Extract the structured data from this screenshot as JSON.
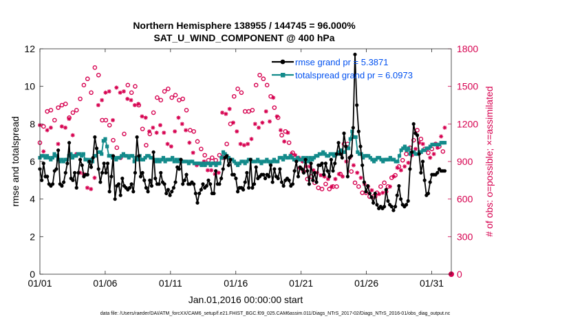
{
  "chart_data": {
    "type": "line",
    "title": "Northern Hemisphere 138955 / 144745 = 96.000%",
    "subtitle": "SAT_U_WIND_COMPONENT @ 400 hPa",
    "xlabel": "Jan.01,2016 00:00:00 start",
    "ylabel": "rmse and totalspread",
    "ylabel_right": "# of obs: o=possible; ×=assimilated",
    "xlim": [
      0,
      31.5
    ],
    "ylim": [
      0,
      12
    ],
    "ylim_right": [
      0,
      1800
    ],
    "x_ticks": [
      {
        "value": 0,
        "label": "01/01"
      },
      {
        "value": 5,
        "label": "01/06"
      },
      {
        "value": 10,
        "label": "01/11"
      },
      {
        "value": 15,
        "label": "01/16"
      },
      {
        "value": 20,
        "label": "01/21"
      },
      {
        "value": 25,
        "label": "01/26"
      },
      {
        "value": 30,
        "label": "01/31"
      }
    ],
    "y_ticks": [
      "0",
      "2",
      "4",
      "6",
      "8",
      "10",
      "12"
    ],
    "y_ticks_right": [
      "0",
      "300",
      "600",
      "900",
      "1200",
      "1500",
      "1800"
    ],
    "grid": false,
    "legend_position": "top-right",
    "series": [
      {
        "name": "rmse grand pr = 5.3871",
        "color": "#000000",
        "marker": "dot",
        "axis": "left",
        "values": [
          5.6,
          5.0,
          5.9,
          5.2,
          5.2,
          4.8,
          4.7,
          4.8,
          5.5,
          5.6,
          6.6,
          4.8,
          4.7,
          4.9,
          5.4,
          5.9,
          7.0,
          5.1,
          5.0,
          5.4,
          4.6,
          5.4,
          6.1,
          5.8,
          5.2,
          5.3,
          5.3,
          6.0,
          5.7,
          6.2,
          7.3,
          6.7,
          5.6,
          4.9,
          5.4,
          5.9,
          5.4,
          5.9,
          4.4,
          5.2,
          6.3,
          4.0,
          4.7,
          4.8,
          4.2,
          5.1,
          4.7,
          4.6,
          4.5,
          4.6,
          4.8,
          4.4,
          5.4,
          7.3,
          6.3,
          5.2,
          5.4,
          5.0,
          4.6,
          4.4,
          5.0,
          4.7,
          6.5,
          5.1,
          4.8,
          4.8,
          5.4,
          4.9,
          4.8,
          4.3,
          4.5,
          4.2,
          4.4,
          4.6,
          4.9,
          5.7,
          5.6,
          6.1,
          4.8,
          5.0,
          5.3,
          4.8,
          4.8,
          4.9,
          4.8,
          4.3,
          3.8,
          4.3,
          4.5,
          4.8,
          4.6,
          4.7,
          5.0,
          4.8,
          4.3,
          4.3,
          5.5,
          4.8,
          4.8,
          5.1,
          5.6,
          6.2,
          6.3,
          5.8,
          6.1,
          5.3,
          5.3,
          5.1,
          4.4,
          4.6,
          4.6,
          4.5,
          4.9,
          5.4,
          4.6,
          6.1,
          4.6,
          4.8,
          5.7,
          5.1,
          5.2,
          5.3,
          5.3,
          5.1,
          5.3,
          5.2,
          5.8,
          4.9,
          5.6,
          5.2,
          5.1,
          5.6,
          4.9,
          4.7,
          5.0,
          5.1,
          5.0,
          4.7,
          4.8,
          5.5,
          6.0,
          5.2,
          5.7,
          5.6,
          5.4,
          6.1,
          5.5,
          4.8,
          5.9,
          5.0,
          5.4,
          4.9,
          5.8,
          5.8,
          5.9,
          5.3,
          5.9,
          5.5,
          5.2,
          6.1,
          5.5,
          5.9,
          6.4,
          7.0,
          6.4,
          6.2,
          7.5,
          6.8,
          5.2,
          6.2,
          6.3,
          7.8,
          11.7,
          9.0,
          7.6,
          6.8,
          5.8,
          4.9,
          4.4,
          4.7,
          4.3,
          4.1,
          3.8,
          4.3,
          3.7,
          3.5,
          3.6,
          3.5,
          3.6,
          4.5,
          3.9,
          3.7,
          3.6,
          3.4,
          3.6,
          4.2,
          4.7,
          4.0,
          3.7,
          3.6,
          3.7,
          3.9,
          5.6,
          6.5,
          8.0,
          7.5,
          7.4,
          6.4,
          5.4,
          6.0,
          5.0,
          4.2,
          4.3,
          4.9,
          5.3,
          5.3,
          5.3,
          5.4,
          5.6,
          5.5,
          5.5,
          5.5
        ]
      },
      {
        "name": "totalspread grand pr = 6.0973",
        "color": "#128a8a",
        "marker": "square",
        "axis": "left",
        "values": [
          6.2,
          6.3,
          6.3,
          6.2,
          6.3,
          6.2,
          6.1,
          6.2,
          6.4,
          6.3,
          6.1,
          6.0,
          6.1,
          6.0,
          6.1,
          6.1,
          6.3,
          6.4,
          6.2,
          6.3,
          6.3,
          6.4,
          6.4,
          6.3,
          6.4,
          6.1,
          6.1,
          6.0,
          6.1,
          6.0,
          6.3,
          6.3,
          6.5,
          6.5,
          6.4,
          7.1,
          7.2,
          6.8,
          6.3,
          6.3,
          6.2,
          6.2,
          6.1,
          6.2,
          6.2,
          6.3,
          6.4,
          6.3,
          6.3,
          6.2,
          6.3,
          6.3,
          6.0,
          6.2,
          6.1,
          6.3,
          6.1,
          6.1,
          6.2,
          6.3,
          6.3,
          6.2,
          6.2,
          6.1,
          6.0,
          6.1,
          6.0,
          6.1,
          6.2,
          6.0,
          6.1,
          6.1,
          6.1,
          6.2,
          6.0,
          6.1,
          6.0,
          6.1,
          6.0,
          6.0,
          6.0,
          6.0,
          5.9,
          6.0,
          6.0,
          5.9,
          5.9,
          5.9,
          5.9,
          5.8,
          5.9,
          5.8,
          5.9,
          5.9,
          5.8,
          5.9,
          5.9,
          5.8,
          5.9,
          5.9,
          6.2,
          6.5,
          6.4,
          6.3,
          6.2,
          6.1,
          6.1,
          6.0,
          5.9,
          5.8,
          5.9,
          6.0,
          6.0,
          5.9,
          6.0,
          6.1,
          6.1,
          6.0,
          6.0,
          6.0,
          6.1,
          6.0,
          5.9,
          6.0,
          6.0,
          6.1,
          6.0,
          5.9,
          6.0,
          6.1,
          6.0,
          6.0,
          6.2,
          6.2,
          6.1,
          6.3,
          6.2,
          6.2,
          6.3,
          6.2,
          6.1,
          6.1,
          6.2,
          6.1,
          6.1,
          6.2,
          6.0,
          6.2,
          6.0,
          6.2,
          6.1,
          6.2,
          6.3,
          6.3,
          6.4,
          6.4,
          6.5,
          6.4,
          6.3,
          6.3,
          6.4,
          6.4,
          6.3,
          6.4,
          6.4,
          6.5,
          6.6,
          6.5,
          6.5,
          6.7,
          6.7,
          7.2,
          7.6,
          7.3,
          7.3,
          6.5,
          6.4,
          6.4,
          6.2,
          6.3,
          6.3,
          6.3,
          6.2,
          6.1,
          6.0,
          6.1,
          6.2,
          6.2,
          6.1,
          6.0,
          6.1,
          6.1,
          6.1,
          6.2,
          6.1,
          6.1,
          6.0,
          6.0,
          6.3,
          6.6,
          6.7,
          6.8,
          6.6,
          6.7,
          6.4,
          6.5,
          6.5,
          6.4,
          6.4,
          6.5,
          6.5,
          6.6,
          6.6,
          6.7,
          6.7,
          6.8,
          6.9,
          6.9,
          6.9,
          6.9,
          6.9,
          7.0,
          7.0,
          7.0
        ]
      },
      {
        "name": "possible",
        "color": "#d6004f",
        "marker": "circle",
        "axis": "right",
        "values": [
          1050,
          1210,
          1180,
          1220,
          1300,
          1250,
          1310,
          1200,
          1230,
          1200,
          1330,
          1430,
          1350,
          1340,
          1360,
          1330,
          1250,
          1230,
          1290,
          1290,
          1310,
          1340,
          1400,
          1420,
          1510,
          1490,
          1560,
          1580,
          1450,
          1550,
          1650,
          1690,
          1590,
          1530,
          1230,
          1440,
          1230,
          1050,
          1190,
          1200,
          1070,
          1120,
          1010,
          920,
          930,
          910,
          1120,
          1400,
          1510,
          1540,
          1450,
          1390,
          1500,
          1480,
          1350,
          1280,
          1160,
          1080,
          1030,
          1050,
          1120,
          1200,
          1290,
          1360,
          1410,
          1490,
          1390,
          1420,
          1460,
          1470,
          1480,
          1360,
          1410,
          1380,
          1430,
          1360,
          1390,
          1420,
          1400,
          1380,
          1310,
          1220,
          1150,
          1180,
          1140,
          1090,
          1060,
          960,
          1000,
          1030,
          950,
          860,
          910,
          970,
          930,
          1050,
          910,
          990,
          950,
          1000,
          930,
          920,
          1040,
          1040,
          1200,
          1300,
          1420,
          1460,
          1480,
          1400,
          1450,
          1390,
          1300,
          1280,
          1300,
          1230,
          1310,
          1420,
          1510,
          1550,
          1590,
          1610,
          1560,
          1540,
          1510,
          1440,
          1420,
          1370,
          1330,
          1210,
          1250,
          1160,
          1110,
          1100,
          1140,
          1230,
          1050,
          1020,
          970,
          940,
          910,
          890,
          850,
          830,
          820,
          800,
          760,
          780,
          780,
          740,
          730,
          700,
          690,
          680,
          680,
          700,
          720,
          680,
          680,
          690,
          700,
          700,
          700,
          760,
          800,
          900,
          1040,
          1100,
          1040,
          900,
          820,
          770,
          730,
          720,
          700,
          690,
          650,
          650,
          650,
          640,
          620,
          610,
          620,
          610,
          650,
          650,
          700,
          700,
          730,
          730,
          700,
          700,
          770,
          780,
          790,
          820,
          860,
          880,
          910,
          930,
          960,
          990,
          1010,
          1050,
          1070,
          1100,
          1150,
          1130,
          1080,
          1050,
          1000,
          980,
          970,
          960,
          1000,
          1050,
          1040,
          1000,
          1020,
          1000,
          980,
          1000
        ]
      },
      {
        "name": "assimilated",
        "color": "#d6004f",
        "marker": "star",
        "axis": "right",
        "values": [
          1190,
          1050,
          980,
          1140,
          1150,
          1190,
          1170,
          1130,
          950,
          1030,
          1040,
          990,
          1180,
          1140,
          1170,
          1220,
          1240,
          1060,
          1110,
          1130,
          960,
          870,
          810,
          790,
          800,
          700,
          690,
          660,
          680,
          740,
          770,
          1320,
          1350,
          1400,
          1390,
          1440,
          1450,
          1460,
          1460,
          1310,
          1230,
          1300,
          1490,
          1470,
          1450,
          1480,
          1460,
          1400,
          1400,
          1390,
          1390,
          1370,
          1350,
          1340,
          1360,
          1300,
          1260,
          1240,
          1250,
          1190,
          1140,
          1200,
          1170,
          1080,
          1130,
          1250,
          1190,
          1170,
          1130,
          1080,
          1040,
          1060,
          1020,
          1070,
          1140,
          1150,
          1250,
          1160,
          1200,
          1180,
          1150,
          1090,
          1050,
          1080,
          970,
          910,
          870,
          900,
          880,
          960,
          900,
          820,
          830,
          860,
          830,
          830,
          800,
          790,
          810,
          1260,
          1290,
          1300,
          1280,
          1360,
          1320,
          1280,
          1210,
          1170,
          1140,
          1080,
          1040,
          1050,
          1030,
          1080,
          1040,
          1100,
          1080,
          1130,
          1200,
          1260,
          1170,
          1190,
          1210,
          1240,
          1300,
          1240,
          1220,
          1350,
          1410,
          1310,
          1260,
          1150,
          1150,
          1080,
          1060,
          1110,
          1130,
          980,
          960,
          1000,
          950,
          920,
          930,
          920,
          900,
          880,
          860,
          870,
          860,
          840,
          830,
          820,
          810,
          800,
          790,
          790,
          780,
          770,
          760,
          750,
          700,
          680,
          760,
          790,
          800,
          790,
          780,
          850,
          900,
          940,
          930,
          880,
          870,
          830,
          810,
          790,
          770,
          750,
          720,
          690,
          700,
          690,
          670,
          650,
          620,
          610,
          640,
          600,
          650,
          610,
          660,
          680,
          700,
          720,
          780,
          800,
          850,
          840,
          830,
          820,
          860,
          870,
          890,
          920,
          950,
          970,
          1000,
          1020,
          1050,
          1060,
          1040,
          1020,
          1000,
          950,
          930,
          920,
          960,
          970,
          1010,
          1040,
          1100,
          1150,
          1170
        ]
      }
    ],
    "legend": [
      {
        "label": "rmse grand pr = 5.3871",
        "series": 0
      },
      {
        "label": "totalspread grand pr = 6.0973",
        "series": 1
      }
    ]
  },
  "footer": "data file: /Users/raeder/DAI/ATM_forcXX/CAM6_setup/f.e21.FHIST_BGC.f09_025.CAM6assim.011/Diags_NTrS_2017-02/Diags_NTrS_2016-01/obs_diag_output.nc"
}
